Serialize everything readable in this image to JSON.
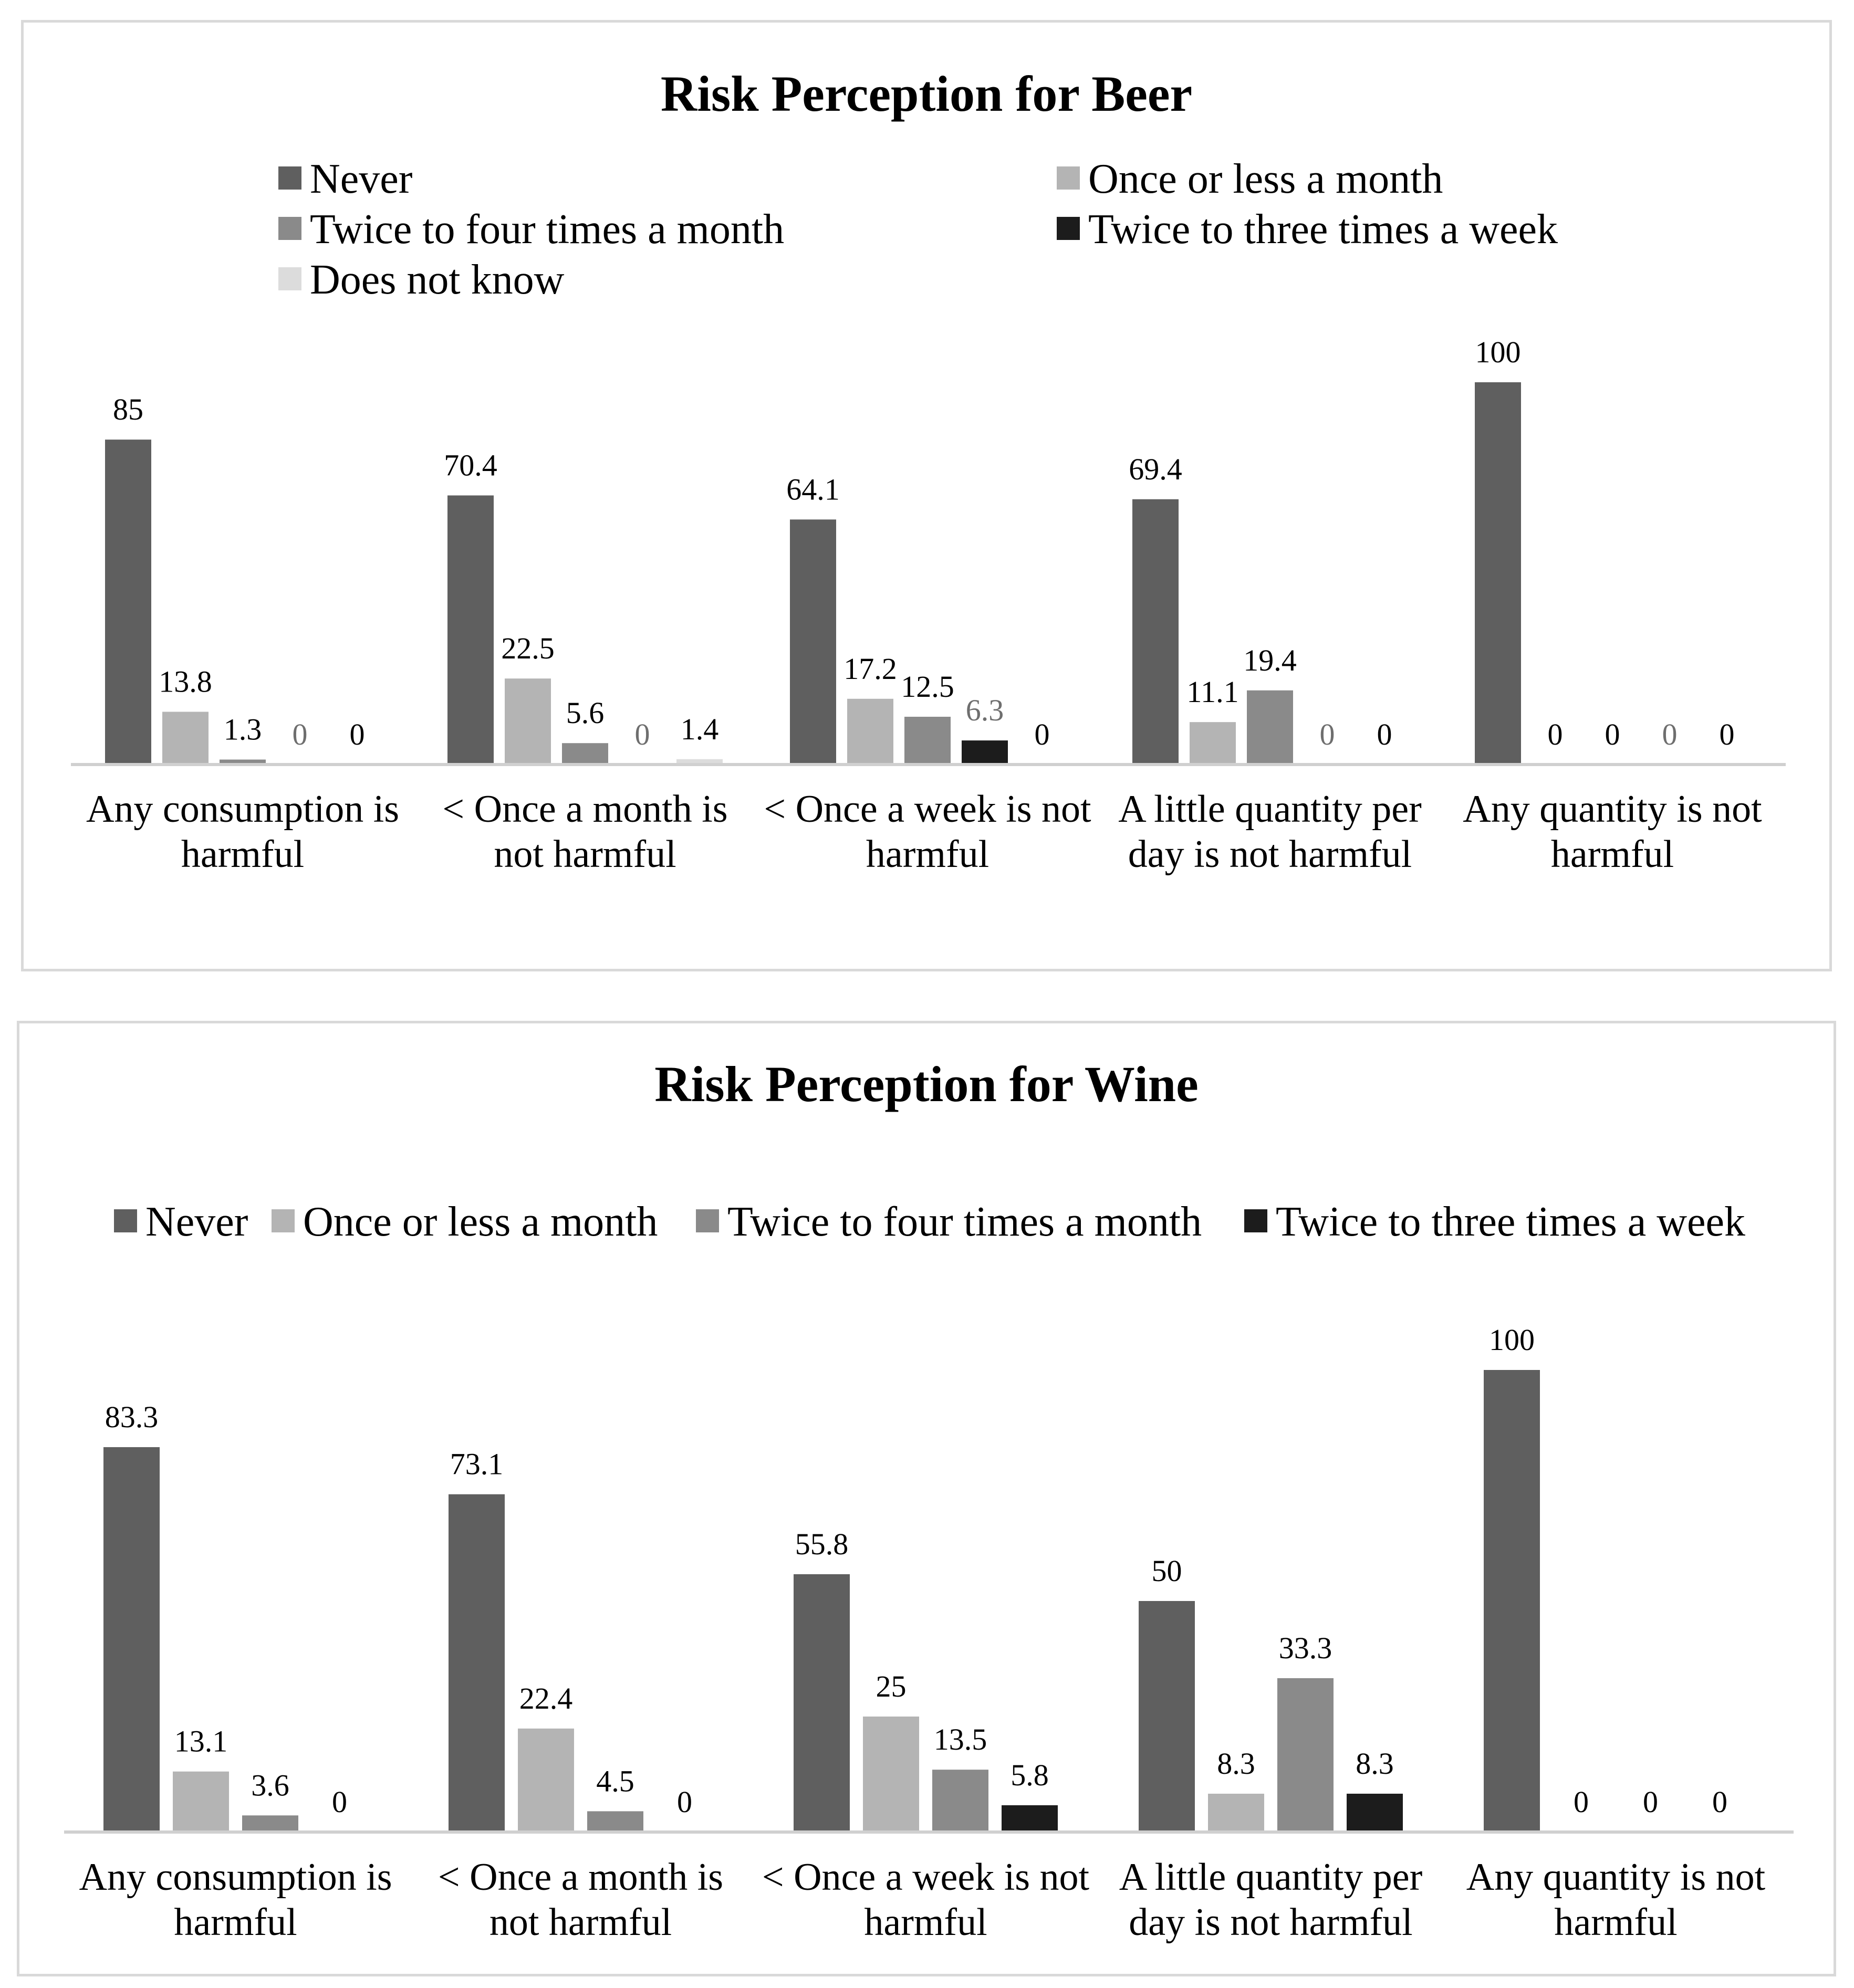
{
  "chart_data": [
    {
      "type": "bar",
      "title": "Risk Perception for Beer",
      "categories": [
        [
          "Any consumption is",
          "harmful"
        ],
        [
          "< Once a month is",
          "not harmful"
        ],
        [
          "< Once a week is not",
          "harmful"
        ],
        [
          "A little quantity per",
          "day is not harmful"
        ],
        [
          "Any quantity is not",
          "harmful"
        ]
      ],
      "series": [
        {
          "name": "Never",
          "color": "#5f5f5f",
          "values": [
            85,
            70.4,
            64.1,
            69.4,
            100
          ]
        },
        {
          "name": "Once or less a month",
          "color": "#b4b4b4",
          "values": [
            13.8,
            22.5,
            17.2,
            11.1,
            0
          ]
        },
        {
          "name": "Twice to four times a month",
          "color": "#8a8a8a",
          "values": [
            1.3,
            5.6,
            12.5,
            19.4,
            0
          ]
        },
        {
          "name": "Twice to three times a week",
          "color": "#1c1c1c",
          "values": [
            0,
            0,
            6.3,
            0,
            0
          ]
        },
        {
          "name": "Does not know",
          "color": "#dcdcdc",
          "values": [
            0,
            1.4,
            0,
            0,
            0
          ]
        }
      ],
      "label_colors": [
        [
          "#000000",
          "#000000",
          "#000000",
          "#6e6e6e",
          "#000000"
        ],
        [
          "#000000",
          "#000000",
          "#000000",
          "#6e6e6e",
          "#000000"
        ],
        [
          "#000000",
          "#000000",
          "#000000",
          "#6e6e6e",
          "#000000"
        ],
        [
          "#000000",
          "#000000",
          "#000000",
          "#6e6e6e",
          "#000000"
        ],
        [
          "#000000",
          "#000000",
          "#000000",
          "#6e6e6e",
          "#000000"
        ]
      ],
      "ylim": [
        0,
        100
      ],
      "grid": false,
      "legend": "top"
    },
    {
      "type": "bar",
      "title": "Risk Perception for Wine",
      "categories": [
        [
          "Any consumption is",
          "harmful"
        ],
        [
          "< Once a month is",
          "not harmful"
        ],
        [
          "< Once a week is not",
          "harmful"
        ],
        [
          "A little quantity per",
          "day is not harmful"
        ],
        [
          "Any quantity is not",
          "harmful"
        ]
      ],
      "series": [
        {
          "name": "Never",
          "color": "#5f5f5f",
          "values": [
            83.3,
            73.1,
            55.8,
            50,
            100
          ]
        },
        {
          "name": "Once or less a month",
          "color": "#b4b4b4",
          "values": [
            13.1,
            22.4,
            25,
            8.3,
            0
          ]
        },
        {
          "name": "Twice to four times a month",
          "color": "#8a8a8a",
          "values": [
            3.6,
            4.5,
            13.5,
            33.3,
            0
          ]
        },
        {
          "name": "Twice to three times a week",
          "color": "#1c1c1c",
          "values": [
            0,
            0,
            5.8,
            8.3,
            0
          ]
        }
      ],
      "ylim": [
        0,
        100
      ],
      "grid": false,
      "legend": "top"
    }
  ]
}
